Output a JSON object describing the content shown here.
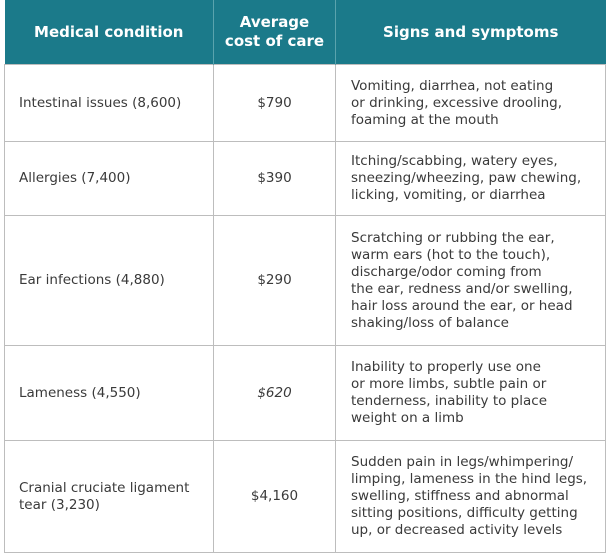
{
  "table": {
    "header": {
      "condition": "Medical condition",
      "cost": [
        "Average",
        "cost of care"
      ],
      "symptoms": "Signs and symptoms"
    },
    "rows": [
      {
        "condition": [
          "Intestinal issues (8,600)"
        ],
        "cost": "$790",
        "symptoms": [
          "Vomiting, diarrhea, not eating",
          "or drinking, excessive drooling,",
          "foaming at the mouth"
        ]
      },
      {
        "condition": [
          "Allergies (7,400)"
        ],
        "cost": "$390",
        "symptoms": [
          "Itching/scabbing, watery eyes,",
          "sneezing/wheezing, paw chewing,",
          "licking, vomiting, or diarrhea"
        ]
      },
      {
        "condition": [
          "Ear infections (4,880)"
        ],
        "cost": "$290",
        "symptoms": [
          "Scratching or rubbing the ear,",
          "warm ears (hot to the touch),",
          "discharge/odor coming from",
          "the ear, redness and/or swelling,",
          "hair loss around the ear, or head",
          "shaking/loss of balance"
        ]
      },
      {
        "condition": [
          "Lameness (4,550)"
        ],
        "cost": "$620",
        "symptoms": [
          "Inability to properly use one",
          "or more limbs, subtle pain or",
          "tenderness, inability to place",
          "weight on a limb"
        ]
      },
      {
        "condition": [
          "Cranial cruciate ligament",
          "tear (3,230)"
        ],
        "cost": "$4,160",
        "symptoms": [
          "Sudden pain in legs/whimpering/",
          "limping, lameness in the hind legs,",
          "swelling, stiffness and abnormal",
          "sitting positions, difficulty getting",
          "up, or decreased activity levels"
        ]
      }
    ]
  }
}
